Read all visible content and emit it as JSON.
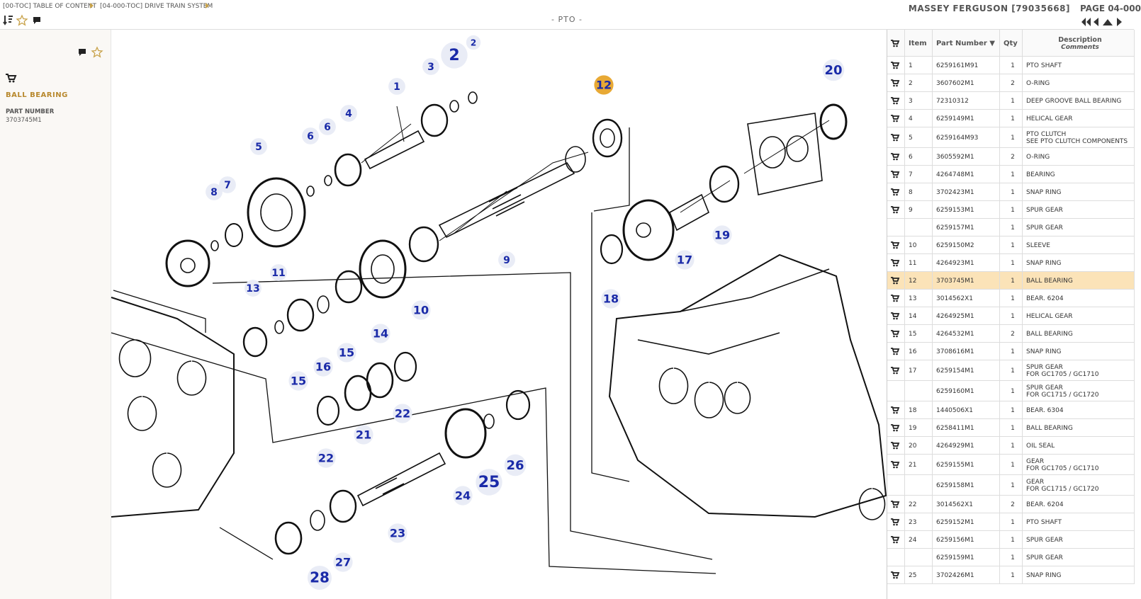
{
  "breadcrumb": [
    "[00-TOC] TABLE OF CONTENT",
    "[04-000-TOC] DRIVE TRAIN SYSTEM"
  ],
  "page_title": "- PTO -",
  "catalog": "MASSEY FERGUSON [79035668]",
  "page_label": "PAGE 04-000",
  "sidebar": {
    "title": "BALL BEARING",
    "part_number_label": "PART NUMBER",
    "part_number": "3703745M1"
  },
  "diagram": {
    "callouts": [
      "2",
      "2",
      "3",
      "1",
      "12",
      "20",
      "4",
      "6",
      "6",
      "5",
      "7",
      "8",
      "9",
      "17",
      "19",
      "18",
      "11",
      "13",
      "10",
      "14",
      "15",
      "16",
      "15",
      "22",
      "21",
      "22",
      "26",
      "25",
      "24",
      "23",
      "27",
      "28"
    ],
    "selected": "12"
  },
  "table": {
    "headers": {
      "item": "Item",
      "part_number": "Part Number",
      "qty": "Qty",
      "description": "Description",
      "comments": "Comments"
    },
    "selected_item": "12",
    "rows": [
      {
        "item": "1",
        "part_number": "6259161M91",
        "qty": "1",
        "description": "PTO SHAFT"
      },
      {
        "item": "2",
        "part_number": "3607602M1",
        "qty": "2",
        "description": "O-RING"
      },
      {
        "item": "3",
        "part_number": "72310312",
        "qty": "1",
        "description": "DEEP GROOVE BALL BEARING"
      },
      {
        "item": "4",
        "part_number": "6259149M1",
        "qty": "1",
        "description": "HELICAL GEAR"
      },
      {
        "item": "5",
        "part_number": "6259164M93",
        "qty": "1",
        "description": "PTO CLUTCH",
        "comment": "SEE PTO CLUTCH COMPONENTS"
      },
      {
        "item": "6",
        "part_number": "3605592M1",
        "qty": "2",
        "description": "O-RING"
      },
      {
        "item": "7",
        "part_number": "4264748M1",
        "qty": "1",
        "description": "BEARING"
      },
      {
        "item": "8",
        "part_number": "3702423M1",
        "qty": "1",
        "description": "SNAP RING"
      },
      {
        "item": "9",
        "part_number": "6259153M1",
        "qty": "1",
        "description": "SPUR GEAR"
      },
      {
        "item": null,
        "part_number": "6259157M1",
        "qty": "1",
        "description": "SPUR GEAR"
      },
      {
        "item": "10",
        "part_number": "6259150M2",
        "qty": "1",
        "description": "SLEEVE"
      },
      {
        "item": "11",
        "part_number": "4264923M1",
        "qty": "1",
        "description": "SNAP RING"
      },
      {
        "item": "12",
        "part_number": "3703745M1",
        "qty": "1",
        "description": "BALL BEARING"
      },
      {
        "item": "13",
        "part_number": "3014562X1",
        "qty": "1",
        "description": "BEAR. 6204"
      },
      {
        "item": "14",
        "part_number": "4264925M1",
        "qty": "1",
        "description": "HELICAL GEAR"
      },
      {
        "item": "15",
        "part_number": "4264532M1",
        "qty": "2",
        "description": "BALL BEARING"
      },
      {
        "item": "16",
        "part_number": "3708616M1",
        "qty": "1",
        "description": "SNAP RING"
      },
      {
        "item": "17",
        "part_number": "6259154M1",
        "qty": "1",
        "description": "SPUR GEAR",
        "comment": "FOR GC1705 / GC1710"
      },
      {
        "item": null,
        "part_number": "6259160M1",
        "qty": "1",
        "description": "SPUR GEAR",
        "comment": "FOR GC1715 / GC1720"
      },
      {
        "item": "18",
        "part_number": "1440506X1",
        "qty": "1",
        "description": "BEAR. 6304"
      },
      {
        "item": "19",
        "part_number": "6258411M1",
        "qty": "1",
        "description": "BALL BEARING"
      },
      {
        "item": "20",
        "part_number": "4264929M1",
        "qty": "1",
        "description": "OIL SEAL"
      },
      {
        "item": "21",
        "part_number": "6259155M1",
        "qty": "1",
        "description": "GEAR",
        "comment": "FOR GC1705 / GC1710"
      },
      {
        "item": null,
        "part_number": "6259158M1",
        "qty": "1",
        "description": "GEAR",
        "comment": "FOR GC1715 / GC1720"
      },
      {
        "item": "22",
        "part_number": "3014562X1",
        "qty": "2",
        "description": "BEAR. 6204"
      },
      {
        "item": "23",
        "part_number": "6259152M1",
        "qty": "1",
        "description": "PTO SHAFT"
      },
      {
        "item": "24",
        "part_number": "6259156M1",
        "qty": "1",
        "description": "SPUR GEAR"
      },
      {
        "item": null,
        "part_number": "6259159M1",
        "qty": "1",
        "description": "SPUR GEAR"
      },
      {
        "item": "25",
        "part_number": "3702426M1",
        "qty": "1",
        "description": "SNAP RING"
      }
    ]
  }
}
